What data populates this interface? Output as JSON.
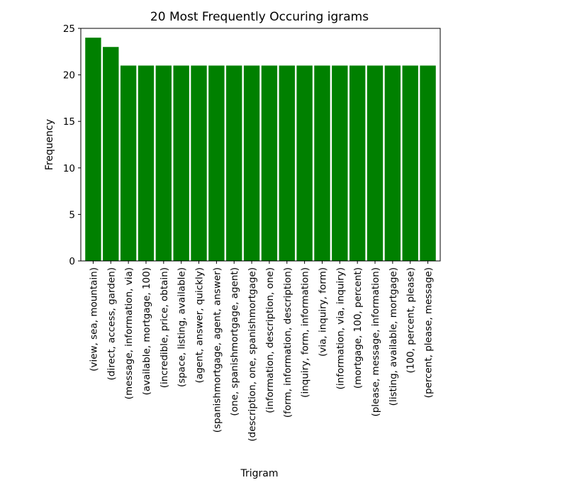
{
  "chart_data": {
    "type": "bar",
    "title": "20 Most Frequently Occuring igrams",
    "xlabel": "Trigram",
    "ylabel": "Frequency",
    "ylim": [
      0,
      25
    ],
    "yticks": [
      0,
      5,
      10,
      15,
      20,
      25
    ],
    "grid": false,
    "color": "#008000",
    "categories": [
      "(view, sea, mountain)",
      "(direct, access, garden)",
      "(message, information, via)",
      "(available, mortgage, 100)",
      "(incredible, price, obtain)",
      "(space, listing, available)",
      "(agent, answer, quickly)",
      "(spanishmortgage, agent, answer)",
      "(one, spanishmortgage, agent)",
      "(description, one, spanishmortgage)",
      "(information, description, one)",
      "(form, information, description)",
      "(inquiry, form, information)",
      "(via, inquiry, form)",
      "(information, via, inquiry)",
      "(mortgage, 100, percent)",
      "(please, message, information)",
      "(listing, available, mortgage)",
      "(100, percent, please)",
      "(percent, please, message)"
    ],
    "values": [
      24,
      23,
      21,
      21,
      21,
      21,
      21,
      21,
      21,
      21,
      21,
      21,
      21,
      21,
      21,
      21,
      21,
      21,
      21,
      21
    ]
  }
}
